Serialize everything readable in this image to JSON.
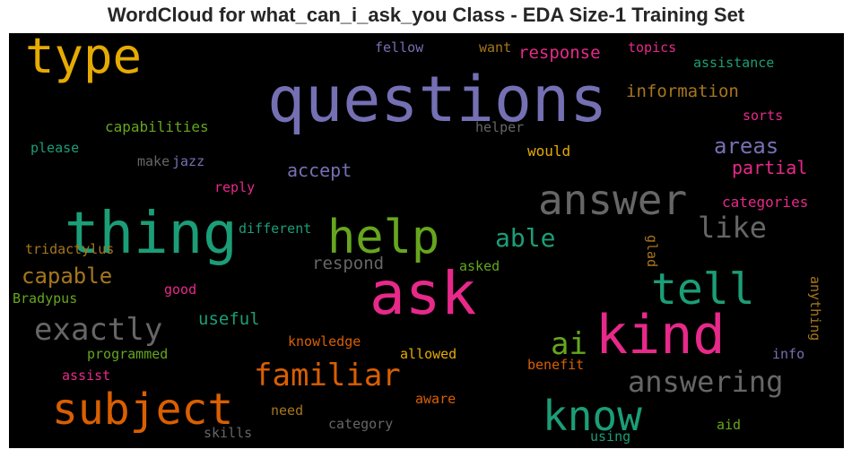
{
  "title": "WordCloud for what_can_i_ask_you Class - EDA Size-1 Training Set",
  "chart_data": {
    "type": "wordcloud",
    "background": "#000000",
    "colormap": "Dark2",
    "words": [
      {
        "text": "questions",
        "color": "#7570b3"
      },
      {
        "text": "ask",
        "color": "#e7298a"
      },
      {
        "text": "kind",
        "color": "#e7298a"
      },
      {
        "text": "thing",
        "color": "#1b9e77"
      },
      {
        "text": "type",
        "color": "#e6ab02"
      },
      {
        "text": "answer",
        "color": "#666666"
      },
      {
        "text": "help",
        "color": "#66a61e"
      },
      {
        "text": "tell",
        "color": "#1b9e77"
      },
      {
        "text": "subject",
        "color": "#d95f02"
      },
      {
        "text": "know",
        "color": "#1b9e77"
      },
      {
        "text": "familiar",
        "color": "#d95f02"
      },
      {
        "text": "exactly",
        "color": "#666666"
      },
      {
        "text": "answering",
        "color": "#666666"
      },
      {
        "text": "ai",
        "color": "#66a61e"
      },
      {
        "text": "like",
        "color": "#666666"
      },
      {
        "text": "able",
        "color": "#1b9e77"
      },
      {
        "text": "areas",
        "color": "#7570b3"
      },
      {
        "text": "capable",
        "color": "#a6761d"
      },
      {
        "text": "information",
        "color": "#a6761d"
      },
      {
        "text": "partial",
        "color": "#e7298a"
      },
      {
        "text": "accept",
        "color": "#7570b3"
      },
      {
        "text": "useful",
        "color": "#1b9e77"
      },
      {
        "text": "response",
        "color": "#e7298a"
      },
      {
        "text": "respond",
        "color": "#666666"
      },
      {
        "text": "capabilities",
        "color": "#66a61e"
      },
      {
        "text": "categories",
        "color": "#e7298a"
      },
      {
        "text": "assistance",
        "color": "#1b9e77"
      },
      {
        "text": "fellow",
        "color": "#7570b3"
      },
      {
        "text": "want",
        "color": "#a6761d"
      },
      {
        "text": "topics",
        "color": "#e7298a"
      },
      {
        "text": "sorts",
        "color": "#e7298a"
      },
      {
        "text": "helper",
        "color": "#666666"
      },
      {
        "text": "would",
        "color": "#e6ab02"
      },
      {
        "text": "please",
        "color": "#1b9e77"
      },
      {
        "text": "make",
        "color": "#666666"
      },
      {
        "text": "jazz",
        "color": "#7570b3"
      },
      {
        "text": "reply",
        "color": "#e7298a"
      },
      {
        "text": "different",
        "color": "#1b9e77"
      },
      {
        "text": "tridactylus",
        "color": "#a6761d"
      },
      {
        "text": "Bradypus",
        "color": "#66a61e"
      },
      {
        "text": "good",
        "color": "#e7298a"
      },
      {
        "text": "programmed",
        "color": "#66a61e"
      },
      {
        "text": "assist",
        "color": "#e7298a"
      },
      {
        "text": "knowledge",
        "color": "#d95f02"
      },
      {
        "text": "allowed",
        "color": "#e6ab02"
      },
      {
        "text": "benefit",
        "color": "#d95f02"
      },
      {
        "text": "aware",
        "color": "#d95f02"
      },
      {
        "text": "need",
        "color": "#a6761d"
      },
      {
        "text": "category",
        "color": "#666666"
      },
      {
        "text": "skills",
        "color": "#666666"
      },
      {
        "text": "using",
        "color": "#1b9e77"
      },
      {
        "text": "aid",
        "color": "#66a61e"
      },
      {
        "text": "info",
        "color": "#7570b3"
      },
      {
        "text": "anything",
        "color": "#a6761d"
      },
      {
        "text": "glad",
        "color": "#a6761d"
      },
      {
        "text": "asked",
        "color": "#66a61e"
      }
    ]
  }
}
